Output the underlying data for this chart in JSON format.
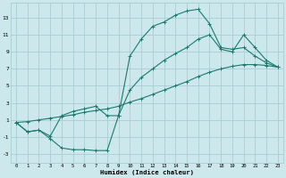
{
  "xlabel": "Humidex (Indice chaleur)",
  "bg_color": "#cce8ec",
  "grid_color": "#a8cdd2",
  "line_color": "#1a7a6e",
  "xlim": [
    -0.5,
    23.5
  ],
  "ylim": [
    -4.0,
    14.8
  ],
  "xticks": [
    0,
    1,
    2,
    3,
    4,
    5,
    6,
    7,
    8,
    9,
    10,
    11,
    12,
    13,
    14,
    15,
    16,
    17,
    18,
    19,
    20,
    21,
    22,
    23
  ],
  "yticks": [
    -3,
    -1,
    1,
    3,
    5,
    7,
    9,
    11,
    13
  ],
  "line1_x": [
    0,
    1,
    2,
    3,
    4,
    5,
    6,
    7,
    8,
    9,
    10,
    11,
    12,
    13,
    14,
    15,
    16,
    17,
    18,
    19,
    20,
    21,
    22,
    23
  ],
  "line1_y": [
    0.7,
    -0.4,
    -0.2,
    -1.2,
    -2.3,
    -2.5,
    -2.5,
    -2.6,
    -2.6,
    1.5,
    8.5,
    10.5,
    12.0,
    12.5,
    13.3,
    13.8,
    14.0,
    12.3,
    9.5,
    9.3,
    9.5,
    8.5,
    7.7,
    7.2
  ],
  "line2_x": [
    0,
    1,
    2,
    3,
    4,
    5,
    6,
    7,
    8,
    9,
    10,
    11,
    12,
    13,
    14,
    15,
    16,
    17,
    18,
    19,
    20,
    21,
    22,
    23
  ],
  "line2_y": [
    0.7,
    0.8,
    1.0,
    1.2,
    1.4,
    1.6,
    1.9,
    2.1,
    2.3,
    2.6,
    3.1,
    3.5,
    4.0,
    4.5,
    5.0,
    5.5,
    6.1,
    6.6,
    7.0,
    7.3,
    7.5,
    7.5,
    7.4,
    7.2
  ],
  "line3_x": [
    0,
    1,
    2,
    3,
    4,
    5,
    6,
    7,
    8,
    9,
    10,
    11,
    12,
    13,
    14,
    15,
    16,
    17,
    18,
    19,
    20,
    21,
    22,
    23
  ],
  "line3_y": [
    0.7,
    -0.4,
    -0.2,
    -0.9,
    1.5,
    2.0,
    2.3,
    2.6,
    1.5,
    1.5,
    4.5,
    6.0,
    7.0,
    8.0,
    8.8,
    9.5,
    10.5,
    11.0,
    9.3,
    9.0,
    11.0,
    9.5,
    8.0,
    7.2
  ]
}
